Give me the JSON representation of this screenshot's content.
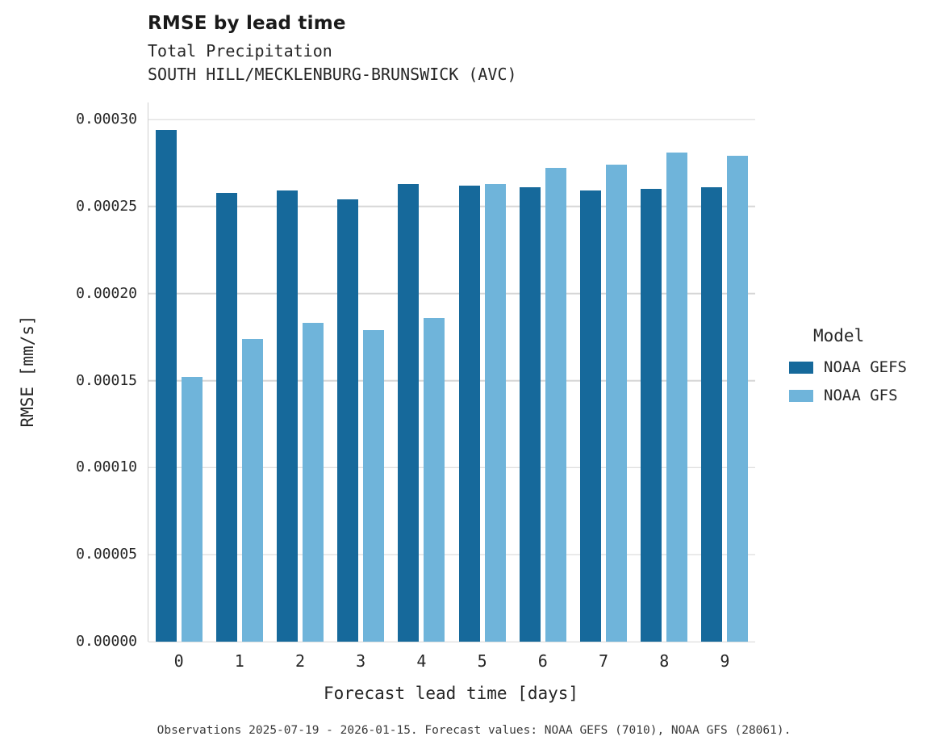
{
  "header": {
    "title": "RMSE by lead time",
    "subtitle1": "Total Precipitation",
    "subtitle2": "SOUTH HILL/MECKLENBURG-BRUNSWICK (AVC)"
  },
  "chart_data": {
    "type": "bar",
    "title": "RMSE by lead time",
    "subtitle": [
      "Total Precipitation",
      "SOUTH HILL/MECKLENBURG-BRUNSWICK (AVC)"
    ],
    "categories": [
      "0",
      "1",
      "2",
      "3",
      "4",
      "5",
      "6",
      "7",
      "8",
      "9"
    ],
    "series": [
      {
        "name": "NOAA GEFS",
        "color": "#16699b",
        "values": [
          0.000294,
          0.000258,
          0.000259,
          0.000254,
          0.000263,
          0.000262,
          0.000261,
          0.000259,
          0.00026,
          0.000261
        ]
      },
      {
        "name": "NOAA GFS",
        "color": "#6fb4da",
        "values": [
          0.000152,
          0.000174,
          0.000183,
          0.000179,
          0.000186,
          0.000263,
          0.000272,
          0.000274,
          0.000281,
          0.000279
        ]
      }
    ],
    "xlabel": "Forecast lead time [days]",
    "ylabel": "RMSE [mm/s]",
    "ylim": [
      0,
      0.0003
    ],
    "yticks": [
      {
        "value": 0.0,
        "label": "0.00000"
      },
      {
        "value": 5e-05,
        "label": "0.00005"
      },
      {
        "value": 0.0001,
        "label": "0.00010"
      },
      {
        "value": 0.00015,
        "label": "0.00015"
      },
      {
        "value": 0.0002,
        "label": "0.00020"
      },
      {
        "value": 0.00025,
        "label": "0.00025"
      },
      {
        "value": 0.0003,
        "label": "0.00030"
      }
    ],
    "grid": true,
    "legend_title": "Model",
    "legend_position": "right"
  },
  "caption": "Observations 2025-07-19 - 2026-01-15. Forecast values: NOAA GEFS (7010), NOAA GFS (28061)."
}
